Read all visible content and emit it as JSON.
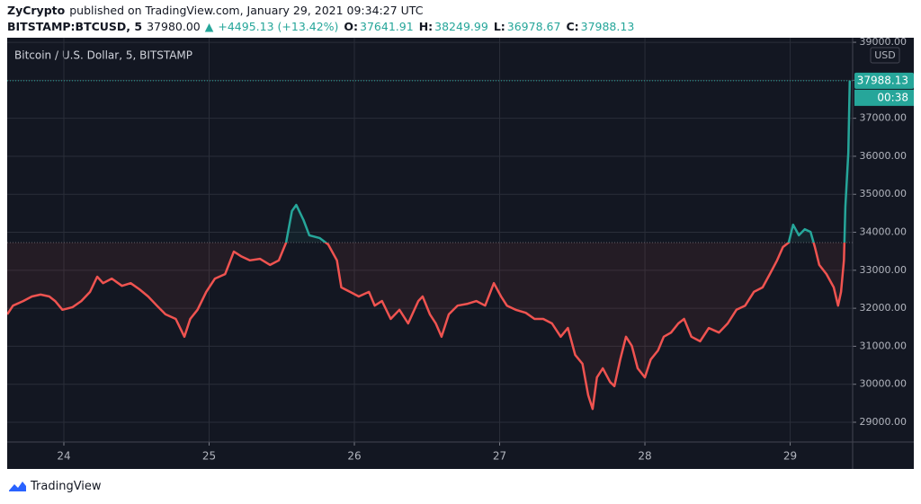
{
  "header": {
    "author": "ZyCrypto",
    "published": "published on TradingView.com, January 29, 2021 09:34:27 UTC",
    "symbol": "BITSTAMP:BTCUSD, 5",
    "price": "37980.00",
    "arrow": "▲",
    "change": "+4495.13 (+13.42%)",
    "ohlc": [
      {
        "label": "O:",
        "value": "37641.91"
      },
      {
        "label": "H:",
        "value": "38249.99"
      },
      {
        "label": "L:",
        "value": "36978.67"
      },
      {
        "label": "C:",
        "value": "37988.13"
      }
    ]
  },
  "chart_data": {
    "type": "line",
    "title": "Bitcoin / U.S. Dollar, 5, BITSTAMP",
    "currency": "USD",
    "baseline": 33730,
    "color_above": "#26a69a",
    "color_below": "#ef5350",
    "grid": true,
    "last_price": 37988.13,
    "countdown": "00:38",
    "x": [
      23.61,
      23.65,
      23.72,
      23.78,
      23.84,
      23.9,
      23.94,
      23.99,
      24.06,
      24.12,
      24.18,
      24.23,
      24.27,
      24.33,
      24.4,
      24.46,
      24.52,
      24.58,
      24.64,
      24.7,
      24.77,
      24.83,
      24.87,
      24.92,
      24.98,
      25.04,
      25.11,
      25.17,
      25.22,
      25.28,
      25.35,
      25.42,
      25.48,
      25.53,
      25.57,
      25.6,
      25.65,
      25.69,
      25.76,
      25.82,
      25.88,
      25.91,
      25.97,
      26.03,
      26.1,
      26.14,
      26.19,
      26.25,
      26.31,
      26.37,
      26.44,
      26.47,
      26.52,
      26.56,
      26.6,
      26.65,
      26.71,
      26.78,
      26.84,
      26.9,
      26.96,
      27.01,
      27.05,
      27.11,
      27.18,
      27.24,
      27.3,
      27.36,
      27.42,
      27.47,
      27.52,
      27.57,
      27.61,
      27.64,
      27.67,
      27.71,
      27.76,
      27.79,
      27.83,
      27.87,
      27.91,
      27.95,
      28.0,
      28.04,
      28.09,
      28.13,
      28.18,
      28.23,
      28.27,
      28.32,
      28.38,
      28.44,
      28.51,
      28.57,
      28.63,
      28.69,
      28.75,
      28.81,
      28.86,
      28.91,
      28.95,
      28.99,
      29.02,
      29.06,
      29.1,
      29.14,
      29.17,
      29.2,
      29.25,
      29.3,
      29.33,
      29.35,
      29.37,
      29.38,
      29.4,
      29.41
    ],
    "values": [
      31840,
      32070,
      32190,
      32310,
      32360,
      32310,
      32190,
      31960,
      32030,
      32190,
      32430,
      32830,
      32660,
      32780,
      32590,
      32660,
      32500,
      32310,
      32070,
      31840,
      31720,
      31250,
      31720,
      31960,
      32430,
      32780,
      32900,
      33490,
      33370,
      33260,
      33300,
      33140,
      33260,
      33730,
      34560,
      34720,
      34320,
      33920,
      33850,
      33680,
      33260,
      32550,
      32430,
      32310,
      32430,
      32070,
      32190,
      31720,
      31960,
      31600,
      32190,
      32310,
      31840,
      31600,
      31250,
      31840,
      32070,
      32120,
      32190,
      32070,
      32660,
      32310,
      32070,
      31960,
      31880,
      31720,
      31720,
      31600,
      31250,
      31480,
      30770,
      30540,
      29710,
      29350,
      30180,
      30420,
      30060,
      29950,
      30650,
      31250,
      31010,
      30420,
      30180,
      30650,
      30890,
      31250,
      31360,
      31600,
      31720,
      31250,
      31130,
      31480,
      31360,
      31600,
      31960,
      32070,
      32430,
      32550,
      32900,
      33260,
      33610,
      33730,
      34200,
      33920,
      34080,
      34010,
      33610,
      33140,
      32900,
      32550,
      32070,
      32430,
      33260,
      34670,
      36090,
      37990
    ],
    "xlim": [
      23.61,
      29.43
    ],
    "xticks": [
      24,
      25,
      26,
      27,
      28,
      29
    ],
    "ylim": [
      28480,
      39120
    ],
    "yticks": [
      {
        "value": 29000,
        "label": "29000.00"
      },
      {
        "value": 30000,
        "label": "30000.00"
      },
      {
        "value": 31000,
        "label": "31000.00"
      },
      {
        "value": 32000,
        "label": "32000.00"
      },
      {
        "value": 33000,
        "label": "33000.00"
      },
      {
        "value": 34000,
        "label": "34000.00"
      },
      {
        "value": 35000,
        "label": "35000.00"
      },
      {
        "value": 36000,
        "label": "36000.00"
      },
      {
        "value": 37000,
        "label": "37000.00"
      },
      {
        "value": 38000,
        "label": "38000.00"
      },
      {
        "value": 39000,
        "label": "39000.00"
      }
    ]
  },
  "footer": {
    "brand": "TradingView"
  }
}
